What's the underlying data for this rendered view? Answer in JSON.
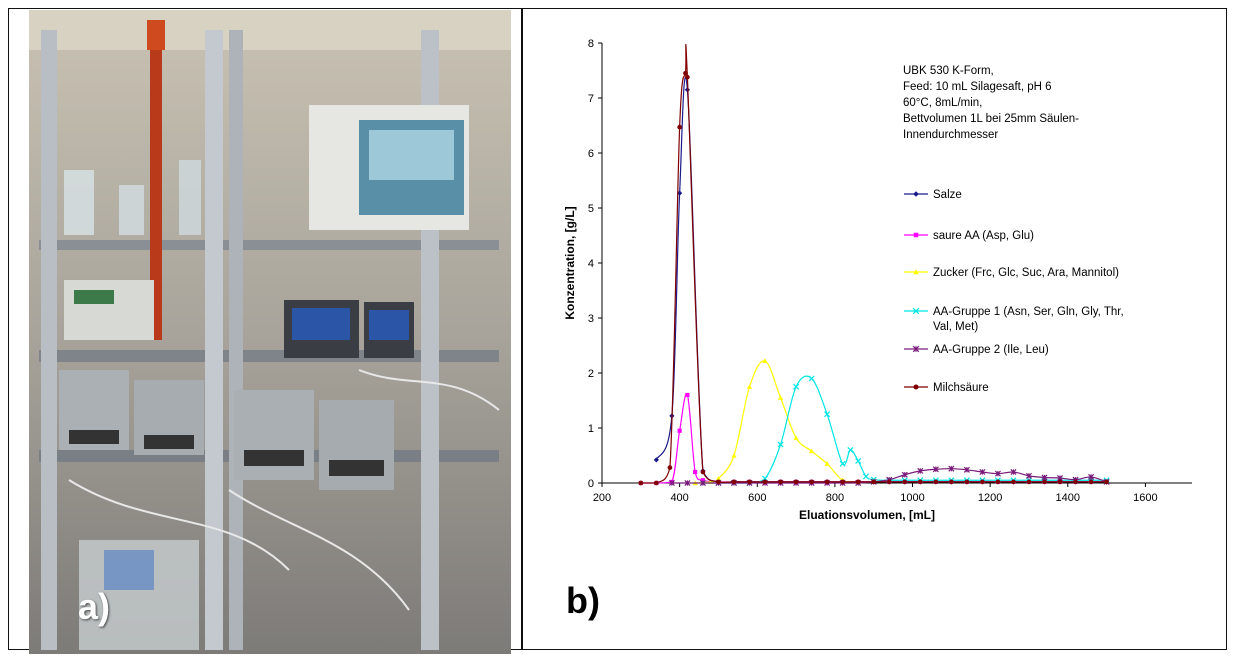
{
  "panels": {
    "photo_label": "a)",
    "chart_label": "b)"
  },
  "chart_data": {
    "type": "line",
    "xlabel": "Eluationsvolumen, [mL]",
    "ylabel": "Konzentration, [g/L]",
    "xlim": [
      200,
      1720
    ],
    "ylim": [
      0,
      8
    ],
    "x_ticks": [
      200,
      400,
      600,
      800,
      1000,
      1200,
      1400,
      1600
    ],
    "y_ticks": [
      0,
      1,
      2,
      3,
      4,
      5,
      6,
      7,
      8
    ],
    "grid": false,
    "legend_position": "right",
    "annotation": [
      "UBK 530 K-Form,",
      "Feed: 10 mL Silagesaft, pH 6",
      "60°C, 8mL/min,",
      "Bettvolumen 1L bei 25mm Säulen-",
      "Innendurchmesser"
    ],
    "series": [
      {
        "name": "Salze",
        "color": "#1a1a8c",
        "marker": "diamond",
        "x": [
          340,
          380,
          400,
          420,
          460,
          500,
          540,
          580,
          620,
          660,
          700,
          740,
          780,
          820,
          860,
          900,
          940,
          980,
          1020,
          1060,
          1100,
          1140,
          1180,
          1220,
          1260,
          1300,
          1340,
          1380,
          1420,
          1460,
          1500
        ],
        "y": [
          0.42,
          1.22,
          5.27,
          7.15,
          0.22,
          0.02,
          0.02,
          0.02,
          0.02,
          0.02,
          0.02,
          0.02,
          0.02,
          0.02,
          0.02,
          0.02,
          0.02,
          0.02,
          0.02,
          0.02,
          0.02,
          0.02,
          0.02,
          0.02,
          0.02,
          0.02,
          0.02,
          0.02,
          0.02,
          0.02,
          0.02
        ]
      },
      {
        "name": "saure AA (Asp, Glu)",
        "color": "#ff00ff",
        "marker": "square",
        "x": [
          300,
          340,
          380,
          400,
          420,
          440,
          460,
          500,
          540,
          580,
          620,
          660,
          700,
          740,
          780,
          820,
          860,
          900,
          940,
          980,
          1020,
          1060,
          1100,
          1140,
          1180,
          1220,
          1260,
          1300,
          1340,
          1380,
          1420,
          1460,
          1500
        ],
        "y": [
          0,
          0,
          0.02,
          0.95,
          1.6,
          0.2,
          0.05,
          0.02,
          0.02,
          0.02,
          0.02,
          0.02,
          0.02,
          0.02,
          0.02,
          0.02,
          0.02,
          0.02,
          0.02,
          0.02,
          0.02,
          0.02,
          0.02,
          0.02,
          0.02,
          0.02,
          0.02,
          0.02,
          0.02,
          0.02,
          0.02,
          0.02,
          0.02
        ]
      },
      {
        "name": "Zucker (Frc, Glc, Suc, Ara, Mannitol)",
        "color": "#ffff00",
        "marker": "triangle",
        "x": [
          440,
          480,
          500,
          540,
          580,
          620,
          660,
          700,
          740,
          780,
          820,
          860
        ],
        "y": [
          0,
          0.02,
          0.08,
          0.5,
          1.75,
          2.22,
          1.55,
          0.82,
          0.58,
          0.35,
          0.05,
          0.02
        ]
      },
      {
        "name": "AA-Gruppe 1 (Asn, Ser, Gln, Gly, Thr, Val, Met)",
        "color": "#00e5e5",
        "marker": "x",
        "x": [
          460,
          500,
          540,
          580,
          620,
          660,
          700,
          740,
          780,
          820,
          840,
          860,
          880,
          900,
          940,
          980,
          1020,
          1060,
          1100,
          1140,
          1180,
          1220,
          1260,
          1300,
          1340,
          1380,
          1420,
          1460,
          1500
        ],
        "y": [
          0,
          0,
          0,
          0,
          0.08,
          0.7,
          1.75,
          1.9,
          1.25,
          0.35,
          0.6,
          0.4,
          0.12,
          0.06,
          0.05,
          0.05,
          0.05,
          0.05,
          0.05,
          0.05,
          0.05,
          0.05,
          0.05,
          0.05,
          0.05,
          0.05,
          0.05,
          0.05,
          0.05
        ]
      },
      {
        "name": "AA-Gruppe 2 (Ile, Leu)",
        "color": "#7a1a7a",
        "marker": "star",
        "x": [
          380,
          420,
          460,
          500,
          540,
          580,
          620,
          660,
          700,
          740,
          780,
          820,
          860,
          900,
          940,
          980,
          1020,
          1060,
          1100,
          1140,
          1180,
          1220,
          1260,
          1300,
          1340,
          1380,
          1420,
          1460,
          1500
        ],
        "y": [
          0,
          0,
          0,
          0,
          0,
          0,
          0,
          0,
          0,
          0,
          0,
          0,
          0,
          0.02,
          0.06,
          0.15,
          0.22,
          0.25,
          0.26,
          0.24,
          0.2,
          0.17,
          0.2,
          0.13,
          0.1,
          0.09,
          0.06,
          0.11,
          0.02
        ]
      },
      {
        "name": "Milchsäure",
        "color": "#800000",
        "marker": "circle",
        "x": [
          300,
          340,
          375,
          400,
          415,
          420,
          460,
          500,
          540,
          580,
          620,
          660,
          700,
          740,
          780,
          820,
          860,
          900,
          940,
          980,
          1020,
          1060,
          1100,
          1140,
          1180,
          1220,
          1260,
          1300,
          1340,
          1380,
          1420,
          1460,
          1500
        ],
        "y": [
          0,
          0,
          0.28,
          6.47,
          7.45,
          7.38,
          0.2,
          0.02,
          0.02,
          0.02,
          0.02,
          0.02,
          0.02,
          0.02,
          0.02,
          0.02,
          0.02,
          0.02,
          0.02,
          0.02,
          0.02,
          0.02,
          0.02,
          0.02,
          0.02,
          0.02,
          0.02,
          0.02,
          0.02,
          0.02,
          0.02,
          0.02,
          0.02
        ]
      }
    ]
  }
}
